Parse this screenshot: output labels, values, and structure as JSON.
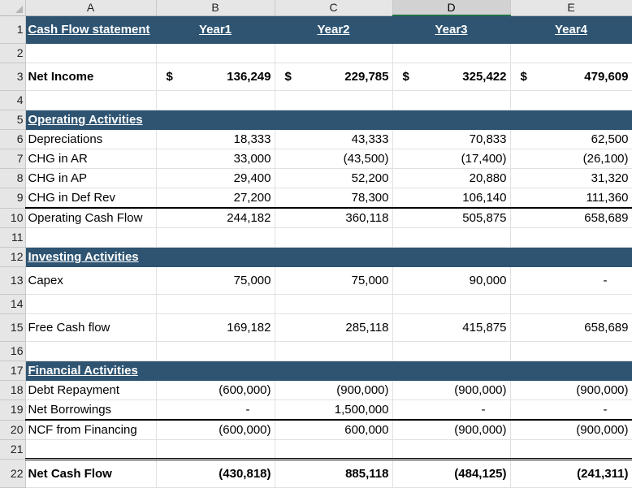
{
  "columns": [
    "A",
    "B",
    "C",
    "D",
    "E"
  ],
  "selected_column": "D",
  "header": {
    "title": "Cash Flow statement",
    "years": [
      "Year1",
      "Year2",
      "Year3",
      "Year4"
    ]
  },
  "net_income": {
    "label": "Net Income",
    "currency": "$",
    "values": [
      "136,249",
      "229,785",
      "325,422",
      "479,609"
    ]
  },
  "operating": {
    "title": "Operating Activities",
    "rows": [
      {
        "label": "Depreciations",
        "values": [
          "18,333",
          "43,333",
          "70,833",
          "62,500"
        ]
      },
      {
        "label": "CHG in AR",
        "values": [
          "33,000",
          "(43,500)",
          "(17,400)",
          "(26,100)"
        ]
      },
      {
        "label": "CHG in AP",
        "values": [
          "29,400",
          "52,200",
          "20,880",
          "31,320"
        ]
      },
      {
        "label": "CHG in Def Rev",
        "values": [
          "27,200",
          "78,300",
          "106,140",
          "111,360"
        ]
      }
    ],
    "total": {
      "label": "Operating Cash Flow",
      "values": [
        "244,182",
        "360,118",
        "505,875",
        "658,689"
      ]
    }
  },
  "investing": {
    "title": "Investing Activities",
    "rows": [
      {
        "label": "Capex",
        "values": [
          "75,000",
          "75,000",
          "90,000",
          "-"
        ]
      }
    ]
  },
  "free_cash_flow": {
    "label": "Free Cash flow",
    "values": [
      "169,182",
      "285,118",
      "415,875",
      "658,689"
    ]
  },
  "financial": {
    "title": "Financial Activities",
    "rows": [
      {
        "label": "Debt Repayment",
        "values": [
          "(600,000)",
          "(900,000)",
          "(900,000)",
          "(900,000)"
        ]
      },
      {
        "label": "Net Borrowings",
        "values": [
          "-",
          "1,500,000",
          "-",
          "-"
        ]
      }
    ],
    "total": {
      "label": "NCF from Financing",
      "values": [
        "(600,000)",
        "600,000",
        "(900,000)",
        "(900,000)"
      ]
    }
  },
  "net_cash_flow": {
    "label": "Net Cash Flow",
    "values": [
      "(430,818)",
      "885,118",
      "(484,125)",
      "(241,311)"
    ]
  },
  "row_numbers": [
    "1",
    "2",
    "3",
    "4",
    "5",
    "6",
    "7",
    "8",
    "9",
    "10",
    "11",
    "12",
    "13",
    "14",
    "15",
    "16",
    "17",
    "18",
    "19",
    "20",
    "21",
    "22"
  ]
}
